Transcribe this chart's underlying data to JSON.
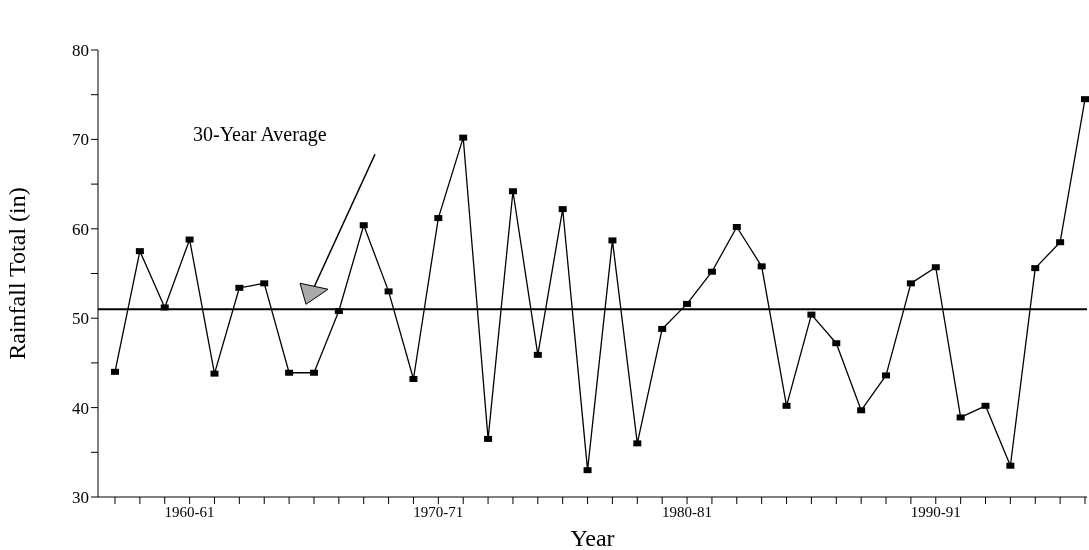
{
  "chart_data": {
    "type": "line",
    "xlabel": "Year",
    "ylabel": "Rainfall Total (in)",
    "categories": [
      null,
      null,
      null,
      "1960-61",
      null,
      null,
      null,
      null,
      null,
      null,
      null,
      null,
      null,
      "1970-71",
      null,
      null,
      null,
      null,
      null,
      null,
      null,
      null,
      null,
      "1980-81",
      null,
      null,
      null,
      null,
      null,
      null,
      null,
      null,
      null,
      "1990-91",
      null,
      null,
      null,
      null,
      null,
      null
    ],
    "series": [
      {
        "color": "#000000",
        "values": [
          44,
          57.5,
          51.2,
          58.8,
          43.8,
          53.4,
          53.9,
          43.9,
          43.9,
          50.8,
          60.4,
          53,
          43.2,
          61.2,
          70.2,
          36.5,
          64.2,
          45.9,
          62.2,
          33,
          58.7,
          36,
          48.8,
          51.6,
          55.2,
          60.2,
          55.8,
          40.2,
          50.4,
          47.2,
          39.7,
          43.6,
          53.9,
          55.7,
          38.9,
          40.2,
          33.5,
          55.6,
          58.5,
          74.5
        ]
      }
    ],
    "ylim": [
      30,
      80
    ],
    "yticks": [
      30,
      {
        "value": 35,
        "label": null
      },
      40,
      {
        "value": 45,
        "label": null
      },
      50,
      {
        "value": 55,
        "label": null
      },
      60,
      {
        "value": 65,
        "label": null
      },
      70,
      {
        "value": 75,
        "label": null
      },
      80
    ],
    "ref_lines": [
      {
        "axis": "y",
        "value": 51,
        "label": "30-Year Average",
        "color": "#000000"
      }
    ],
    "grid": false,
    "legend": false,
    "marker": "square",
    "line_style": "solid"
  }
}
